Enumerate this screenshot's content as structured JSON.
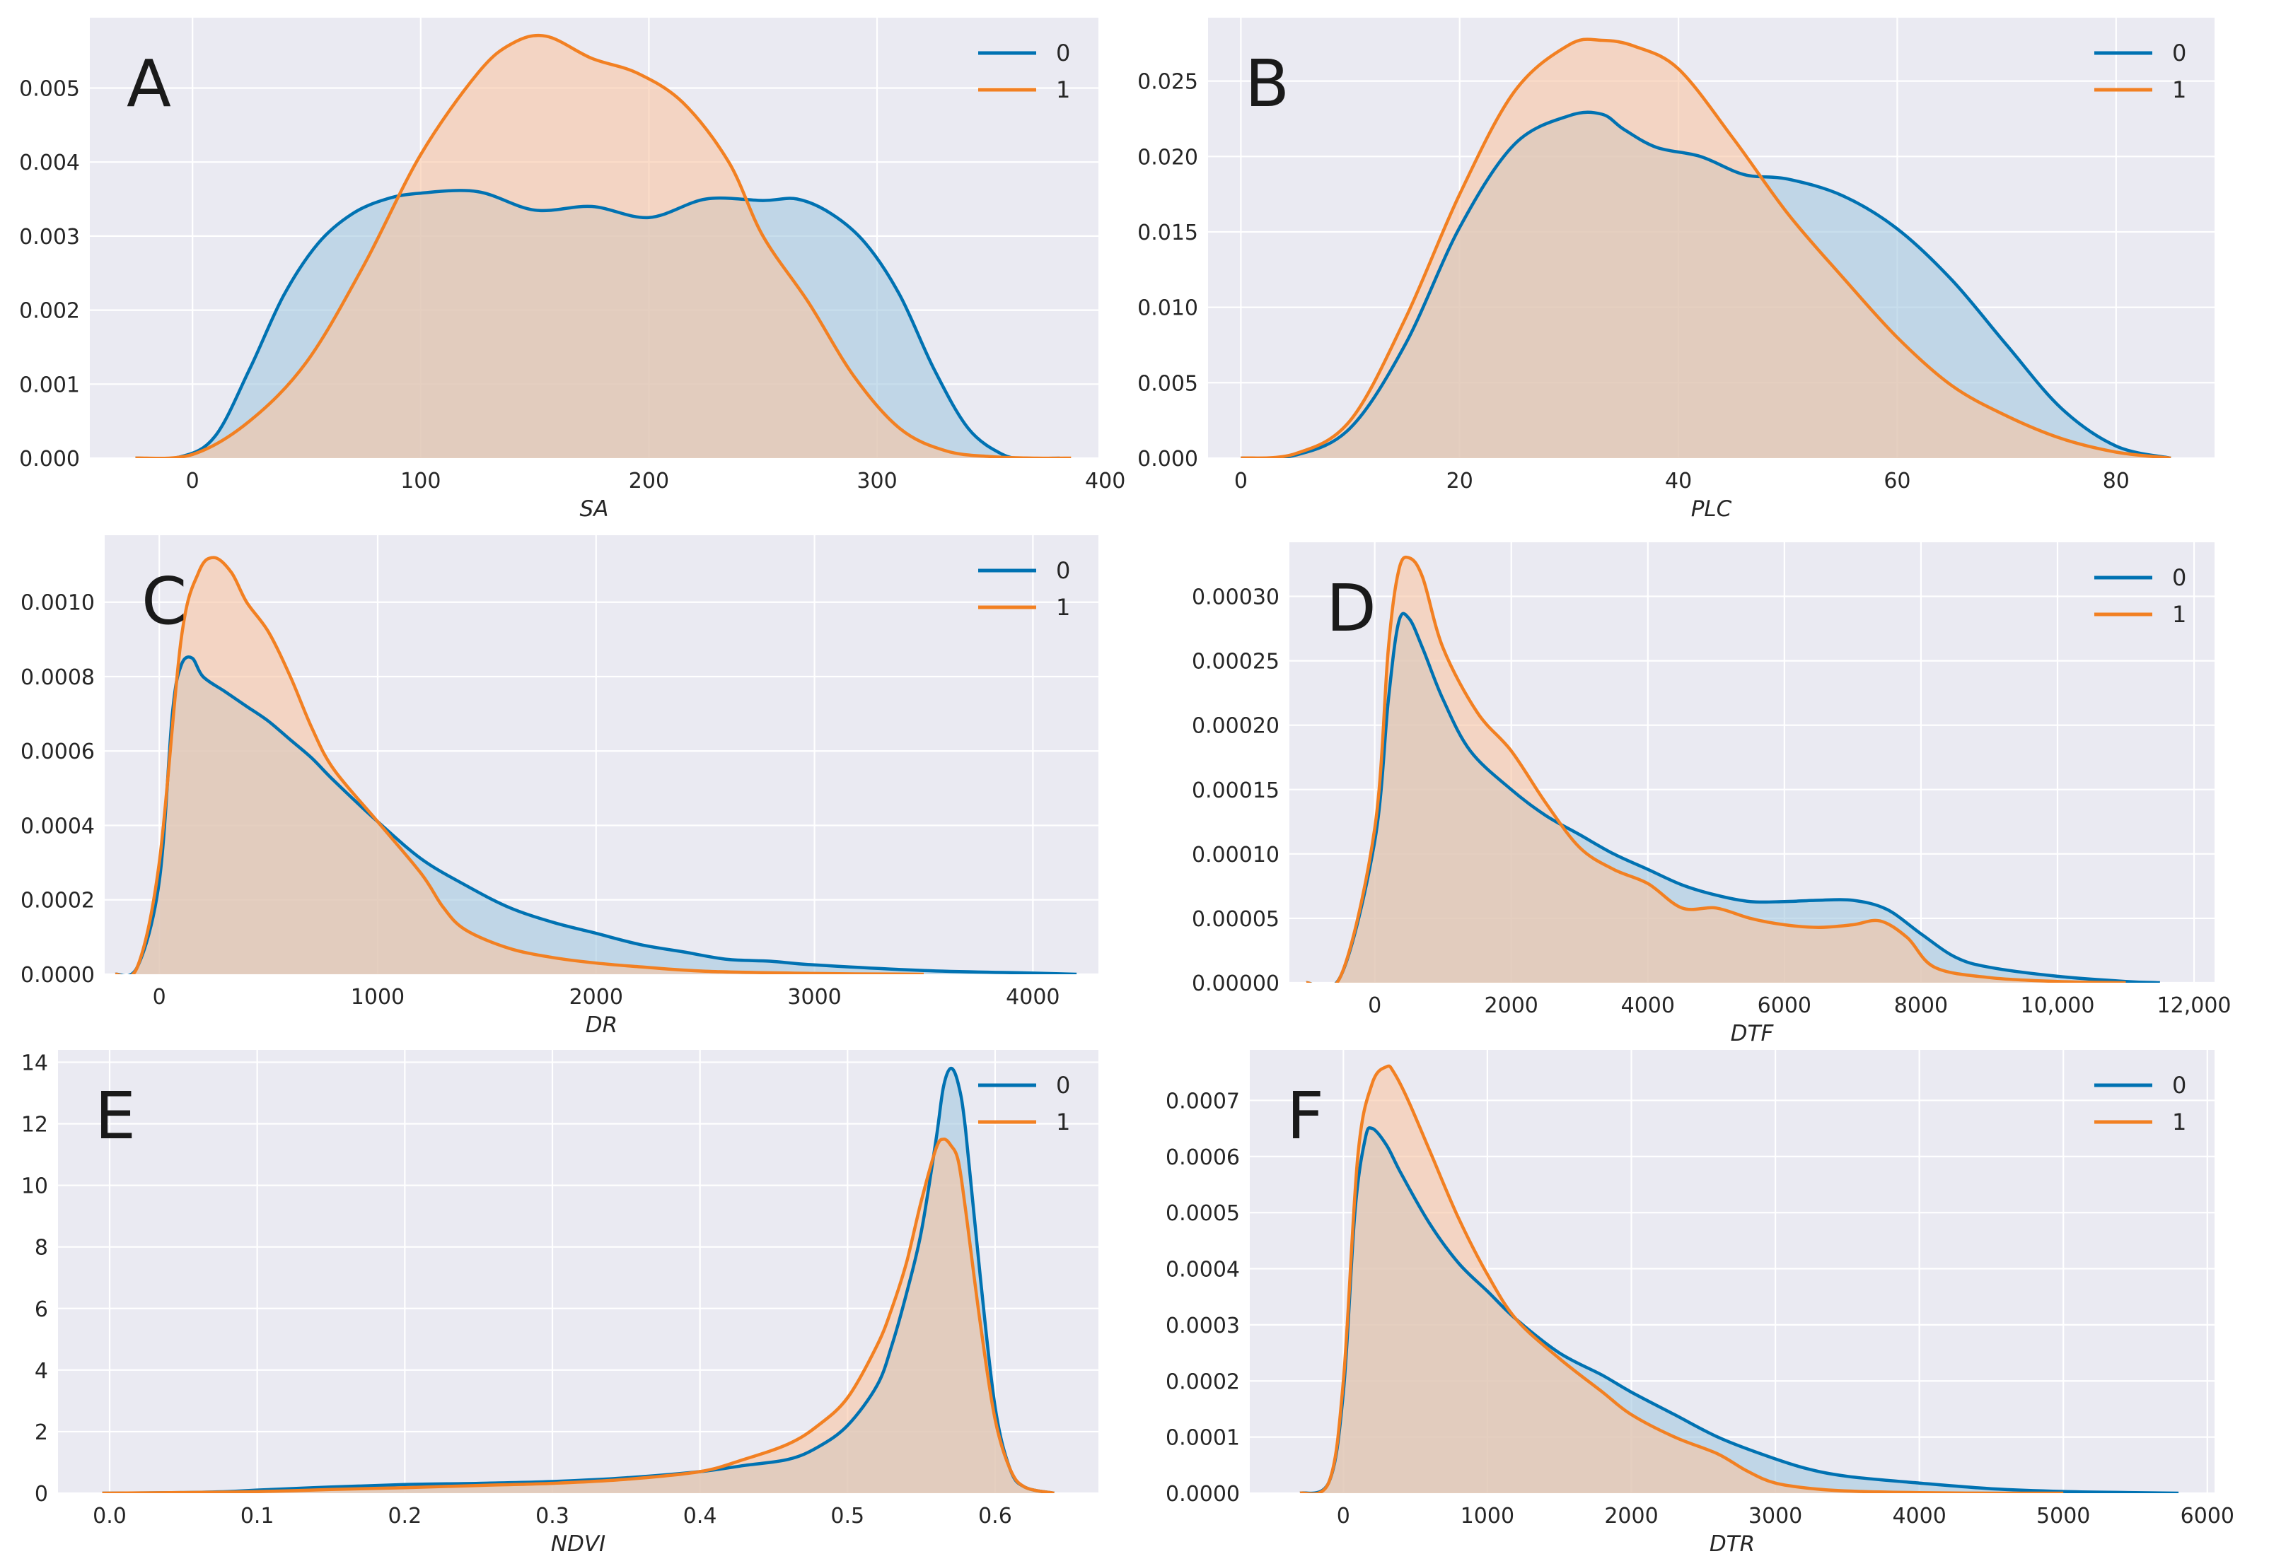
{
  "series_colors": {
    "0": "#0072b2",
    "1": "#f28022"
  },
  "fill_colors": {
    "0": "#a3c8e0",
    "1": "#f8c5a4"
  },
  "panel_background": "#eaeaf2",
  "chart_data": [
    {
      "id": "A",
      "type": "area",
      "panel_label": "A",
      "xlabel": "SA",
      "ylabel": "",
      "xlim": [
        -45,
        397
      ],
      "ylim": [
        0,
        0.00595
      ],
      "xticks": [
        0,
        100,
        200,
        300,
        400
      ],
      "xtick_labels": [
        "0",
        "100",
        "200",
        "300",
        "400"
      ],
      "yticks": [
        0,
        0.001,
        0.002,
        0.003,
        0.004,
        0.005
      ],
      "ytick_labels": [
        "0.000",
        "0.001",
        "0.002",
        "0.003",
        "0.004",
        "0.005"
      ],
      "legend": [
        "0",
        "1"
      ],
      "series": [
        {
          "name": "0",
          "x": [
            -25,
            -5,
            10,
            25,
            40,
            55,
            70,
            85,
            100,
            125,
            150,
            175,
            200,
            225,
            250,
            265,
            280,
            295,
            310,
            325,
            340,
            355,
            365,
            380
          ],
          "y": [
            0,
            2e-05,
            0.0003,
            0.0012,
            0.0022,
            0.0029,
            0.0033,
            0.0035,
            0.00358,
            0.0036,
            0.00335,
            0.0034,
            0.00325,
            0.0035,
            0.00348,
            0.0035,
            0.0033,
            0.0029,
            0.0022,
            0.0012,
            0.0004,
            5e-05,
            0,
            0
          ]
        },
        {
          "name": "1",
          "x": [
            -25,
            0,
            25,
            50,
            75,
            100,
            125,
            140,
            155,
            175,
            195,
            215,
            235,
            250,
            270,
            290,
            310,
            330,
            350,
            370,
            385
          ],
          "y": [
            0,
            5e-05,
            0.0005,
            0.0013,
            0.0026,
            0.0041,
            0.0052,
            0.0056,
            0.0057,
            0.0054,
            0.0052,
            0.0048,
            0.004,
            0.003,
            0.0021,
            0.0011,
            0.0004,
            0.0001,
            2e-05,
            0,
            0
          ]
        }
      ]
    },
    {
      "id": "B",
      "type": "area",
      "panel_label": "B",
      "xlabel": "PLC",
      "ylabel": "",
      "xlim": [
        -3,
        89
      ],
      "ylim": [
        0,
        0.0292
      ],
      "xticks": [
        0,
        20,
        40,
        60,
        80
      ],
      "xtick_labels": [
        "0",
        "20",
        "40",
        "60",
        "80"
      ],
      "yticks": [
        0,
        0.005,
        0.01,
        0.015,
        0.02,
        0.025
      ],
      "ytick_labels": [
        "0.000",
        "0.005",
        "0.010",
        "0.015",
        "0.020",
        "0.025"
      ],
      "legend": [
        "0",
        "1"
      ],
      "series": [
        {
          "name": "0",
          "x": [
            0,
            5,
            10,
            15,
            20,
            25,
            30,
            33,
            35,
            38,
            42,
            46,
            50,
            55,
            60,
            65,
            70,
            75,
            80,
            85
          ],
          "y": [
            0,
            0.0002,
            0.002,
            0.0075,
            0.0153,
            0.0208,
            0.0227,
            0.0228,
            0.0218,
            0.0206,
            0.02,
            0.0188,
            0.0185,
            0.0174,
            0.0152,
            0.0118,
            0.0075,
            0.0033,
            0.0008,
            0
          ]
        },
        {
          "name": "1",
          "x": [
            0,
            5,
            10,
            15,
            20,
            25,
            30,
            33,
            36,
            40,
            45,
            50,
            55,
            60,
            65,
            70,
            75,
            80,
            85
          ],
          "y": [
            0,
            0.0003,
            0.0025,
            0.0092,
            0.0175,
            0.0243,
            0.0274,
            0.0277,
            0.0273,
            0.0258,
            0.0212,
            0.0162,
            0.012,
            0.008,
            0.0048,
            0.0028,
            0.0013,
            0.0004,
            0
          ]
        }
      ]
    },
    {
      "id": "C",
      "type": "area",
      "panel_label": "C",
      "xlabel": "DR",
      "ylabel": "",
      "xlim": [
        -250,
        4300
      ],
      "ylim": [
        0,
        0.00118
      ],
      "xticks": [
        0,
        1000,
        2000,
        3000,
        4000
      ],
      "xtick_labels": [
        "0",
        "1000",
        "2000",
        "3000",
        "4000"
      ],
      "yticks": [
        0,
        0.0002,
        0.0004,
        0.0006,
        0.0008,
        0.001
      ],
      "ytick_labels": [
        "0.0000",
        "0.0002",
        "0.0004",
        "0.0006",
        "0.0008",
        "0.0010"
      ],
      "legend": [
        "0",
        "1"
      ],
      "series": [
        {
          "name": "0",
          "x": [
            -200,
            -100,
            0,
            60,
            100,
            150,
            200,
            300,
            400,
            500,
            600,
            700,
            800,
            1000,
            1200,
            1400,
            1600,
            1800,
            2000,
            2200,
            2400,
            2600,
            2800,
            3000,
            3500,
            4000,
            4200
          ],
          "y": [
            0,
            2e-05,
            0.00025,
            0.0007,
            0.00083,
            0.00085,
            0.0008,
            0.00076,
            0.00072,
            0.00068,
            0.00063,
            0.00058,
            0.00052,
            0.00041,
            0.00031,
            0.00024,
            0.00018,
            0.00014,
            0.00011,
            8e-05,
            6e-05,
            4e-05,
            3.5e-05,
            2.5e-05,
            1e-05,
            3e-06,
            0
          ]
        },
        {
          "name": "1",
          "x": [
            -200,
            -100,
            0,
            100,
            180,
            250,
            330,
            400,
            500,
            600,
            700,
            800,
            1000,
            1200,
            1300,
            1400,
            1600,
            1800,
            2000,
            2200,
            2500,
            3000,
            3500
          ],
          "y": [
            0,
            2e-05,
            0.0003,
            0.0009,
            0.00108,
            0.00112,
            0.00108,
            0.001,
            0.00092,
            0.0008,
            0.00066,
            0.00055,
            0.00041,
            0.00027,
            0.00018,
            0.00012,
            7e-05,
            4.5e-05,
            3e-05,
            2e-05,
            8e-06,
            2e-06,
            0
          ]
        }
      ]
    },
    {
      "id": "D",
      "type": "area",
      "panel_label": "D",
      "xlabel": "DTF",
      "ylabel": "",
      "xlim": [
        -1250,
        12300
      ],
      "ylim": [
        0,
        0.000342
      ],
      "xticks": [
        0,
        2000,
        4000,
        6000,
        8000,
        10000,
        12000
      ],
      "xtick_labels": [
        "0",
        "2000",
        "4000",
        "6000",
        "8000",
        "10,000",
        "12,000"
      ],
      "yticks": [
        0,
        5e-05,
        0.0001,
        0.00015,
        0.0002,
        0.00025,
        0.0003
      ],
      "ytick_labels": [
        "0.00000",
        "0.00005",
        "0.00010",
        "0.00015",
        "0.00020",
        "0.00025",
        "0.00030"
      ],
      "legend": [
        "0",
        "1"
      ],
      "series": [
        {
          "name": "0",
          "x": [
            -1000,
            -500,
            0,
            200,
            350,
            500,
            700,
            1000,
            1400,
            2000,
            2500,
            3000,
            3500,
            4000,
            4500,
            5000,
            5500,
            6000,
            6500,
            7000,
            7500,
            8000,
            8500,
            9000,
            10000,
            11000,
            11500
          ],
          "y": [
            0,
            5e-06,
            0.00011,
            0.00022,
            0.00028,
            0.000283,
            0.00026,
            0.00022,
            0.00018,
            0.00015,
            0.00013,
            0.000115,
            0.0001,
            8.8e-05,
            7.6e-05,
            6.8e-05,
            6.3e-05,
            6.3e-05,
            6.4e-05,
            6.4e-05,
            5.7e-05,
            3.8e-05,
            2e-05,
            1.2e-05,
            5e-06,
            1e-06,
            0
          ]
        },
        {
          "name": "1",
          "x": [
            -1000,
            -500,
            0,
            200,
            350,
            500,
            700,
            1000,
            1500,
            2000,
            2500,
            3000,
            3500,
            4000,
            4500,
            5000,
            5500,
            6000,
            6500,
            7000,
            7400,
            7800,
            8200,
            9000,
            10000,
            11000
          ],
          "y": [
            0,
            5e-06,
            0.00012,
            0.00026,
            0.00032,
            0.00033,
            0.000315,
            0.00026,
            0.00021,
            0.00018,
            0.00014,
            0.000105,
            8.8e-05,
            7.7e-05,
            5.8e-05,
            5.8e-05,
            5e-05,
            4.5e-05,
            4.3e-05,
            4.5e-05,
            4.8e-05,
            3.5e-05,
            1.2e-05,
            4e-06,
            1e-06,
            0
          ]
        }
      ]
    },
    {
      "id": "E",
      "type": "area",
      "panel_label": "E",
      "xlabel": "NDVI",
      "ylabel": "",
      "xlim": [
        -0.035,
        0.67
      ],
      "ylim": [
        0,
        14.4
      ],
      "xticks": [
        0.0,
        0.1,
        0.2,
        0.3,
        0.4,
        0.5,
        0.6
      ],
      "xtick_labels": [
        "0.0",
        "0.1",
        "0.2",
        "0.3",
        "0.4",
        "0.5",
        "0.6"
      ],
      "yticks": [
        0,
        2,
        4,
        6,
        8,
        10,
        12,
        14
      ],
      "ytick_labels": [
        "0",
        "2",
        "4",
        "6",
        "8",
        "10",
        "12",
        "14"
      ],
      "legend": [
        "0",
        "1"
      ],
      "series": [
        {
          "name": "0",
          "x": [
            -0.005,
            0.05,
            0.08,
            0.1,
            0.15,
            0.2,
            0.25,
            0.3,
            0.35,
            0.4,
            0.43,
            0.46,
            0.48,
            0.5,
            0.52,
            0.53,
            0.54,
            0.55,
            0.56,
            0.565,
            0.57,
            0.575,
            0.58,
            0.59,
            0.6,
            0.61,
            0.62,
            0.64
          ],
          "y": [
            0,
            0.02,
            0.05,
            0.1,
            0.2,
            0.28,
            0.32,
            0.38,
            0.5,
            0.7,
            0.9,
            1.1,
            1.5,
            2.2,
            3.5,
            4.8,
            6.5,
            8.5,
            11.5,
            13.2,
            13.8,
            13.3,
            11.8,
            7.0,
            2.8,
            0.8,
            0.2,
            0
          ]
        },
        {
          "name": "1",
          "x": [
            -0.005,
            0.05,
            0.1,
            0.15,
            0.2,
            0.25,
            0.3,
            0.35,
            0.4,
            0.43,
            0.46,
            0.48,
            0.5,
            0.52,
            0.53,
            0.54,
            0.55,
            0.56,
            0.565,
            0.57,
            0.575,
            0.58,
            0.59,
            0.6,
            0.61,
            0.62,
            0.64
          ],
          "y": [
            0,
            0.02,
            0.05,
            0.12,
            0.18,
            0.25,
            0.32,
            0.45,
            0.7,
            1.1,
            1.6,
            2.2,
            3.1,
            4.8,
            6.0,
            7.5,
            9.5,
            11.2,
            11.5,
            11.3,
            10.8,
            9.2,
            5.5,
            2.4,
            0.8,
            0.2,
            0
          ]
        }
      ]
    },
    {
      "id": "F",
      "type": "area",
      "panel_label": "F",
      "xlabel": "DTR",
      "ylabel": "",
      "xlim": [
        -650,
        6050
      ],
      "ylim": [
        0,
        0.00079
      ],
      "xticks": [
        0,
        1000,
        2000,
        3000,
        4000,
        5000,
        6000
      ],
      "xtick_labels": [
        "0",
        "1000",
        "2000",
        "3000",
        "4000",
        "5000",
        "6000"
      ],
      "yticks": [
        0,
        0.0001,
        0.0002,
        0.0003,
        0.0004,
        0.0005,
        0.0006,
        0.0007
      ],
      "ytick_labels": [
        "0.0000",
        "0.0001",
        "0.0002",
        "0.0003",
        "0.0004",
        "0.0005",
        "0.0006",
        "0.0007"
      ],
      "legend": [
        "0",
        "1"
      ],
      "series": [
        {
          "name": "0",
          "x": [
            -300,
            -100,
            0,
            80,
            150,
            200,
            300,
            400,
            600,
            800,
            1000,
            1200,
            1500,
            1800,
            2000,
            2300,
            2600,
            2900,
            3200,
            3500,
            4000,
            4500,
            5000,
            5500,
            5800
          ],
          "y": [
            0,
            2e-05,
            0.00018,
            0.0005,
            0.00063,
            0.00065,
            0.00062,
            0.00057,
            0.00048,
            0.00041,
            0.00036,
            0.00031,
            0.00025,
            0.00021,
            0.00018,
            0.00014,
            0.0001,
            7e-05,
            4.5e-05,
            3e-05,
            1.8e-05,
            8e-06,
            3e-06,
            1e-06,
            0
          ]
        },
        {
          "name": "1",
          "x": [
            -300,
            -100,
            0,
            100,
            200,
            300,
            350,
            450,
            600,
            800,
            1000,
            1200,
            1500,
            1800,
            2000,
            2300,
            2600,
            2800,
            3000,
            3300,
            3600,
            4000,
            4500,
            5000
          ],
          "y": [
            0,
            2e-05,
            0.0002,
            0.0006,
            0.00073,
            0.00076,
            0.00075,
            0.0007,
            0.00061,
            0.00049,
            0.00039,
            0.00031,
            0.00024,
            0.00018,
            0.00014,
            0.0001,
            7e-05,
            4e-05,
            1.8e-05,
            7e-06,
            3e-06,
            1e-06,
            0,
            0
          ]
        }
      ]
    }
  ]
}
